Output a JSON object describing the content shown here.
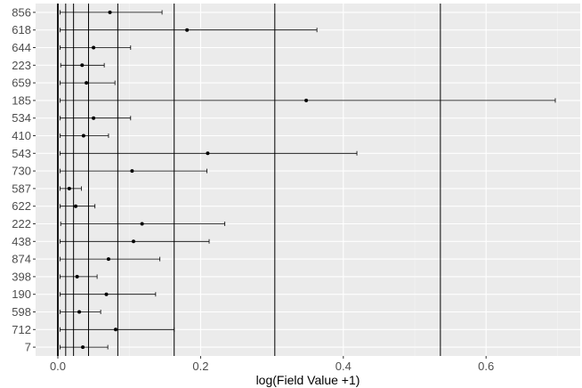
{
  "chart_data": {
    "type": "errorbar",
    "xlabel": "log(Field Value +1)",
    "ylabel": "",
    "xlim": [
      -0.02,
      0.73
    ],
    "x_ticks": [
      0.0,
      0.2,
      0.4,
      0.6
    ],
    "x_tick_labels": [
      "0.0",
      "0.2",
      "0.4",
      "0.6"
    ],
    "grid": true,
    "categories": [
      "856",
      "618",
      "644",
      "223",
      "659",
      "185",
      "534",
      "410",
      "543",
      "730",
      "587",
      "622",
      "222",
      "438",
      "874",
      "398",
      "190",
      "598",
      "712",
      "7"
    ],
    "estimates": [
      0.073,
      0.181,
      0.05,
      0.034,
      0.04,
      0.348,
      0.05,
      0.036,
      0.21,
      0.104,
      0.016,
      0.025,
      0.118,
      0.106,
      0.071,
      0.027,
      0.068,
      0.03,
      0.081,
      0.035
    ],
    "lower": [
      0.003,
      0.003,
      0.003,
      0.004,
      0.003,
      0.003,
      0.003,
      0.003,
      0.003,
      0.003,
      0.003,
      0.003,
      0.004,
      0.003,
      0.003,
      0.003,
      0.003,
      0.003,
      0.003,
      0.003
    ],
    "upper": [
      0.146,
      0.363,
      0.102,
      0.065,
      0.08,
      0.697,
      0.102,
      0.071,
      0.419,
      0.209,
      0.033,
      0.052,
      0.234,
      0.212,
      0.143,
      0.055,
      0.137,
      0.06,
      0.163,
      0.07
    ],
    "vertical_lines": [
      0.0,
      0.011,
      0.022,
      0.043,
      0.084,
      0.163,
      0.304,
      0.536
    ],
    "colors": {
      "panel": "#EBEBEB",
      "grid_major": "#FFFFFF",
      "grid_minor": "#F5F5F5",
      "line": "#000000",
      "tick_text": "#4D4D4D",
      "tick_mark": "#333333"
    }
  }
}
